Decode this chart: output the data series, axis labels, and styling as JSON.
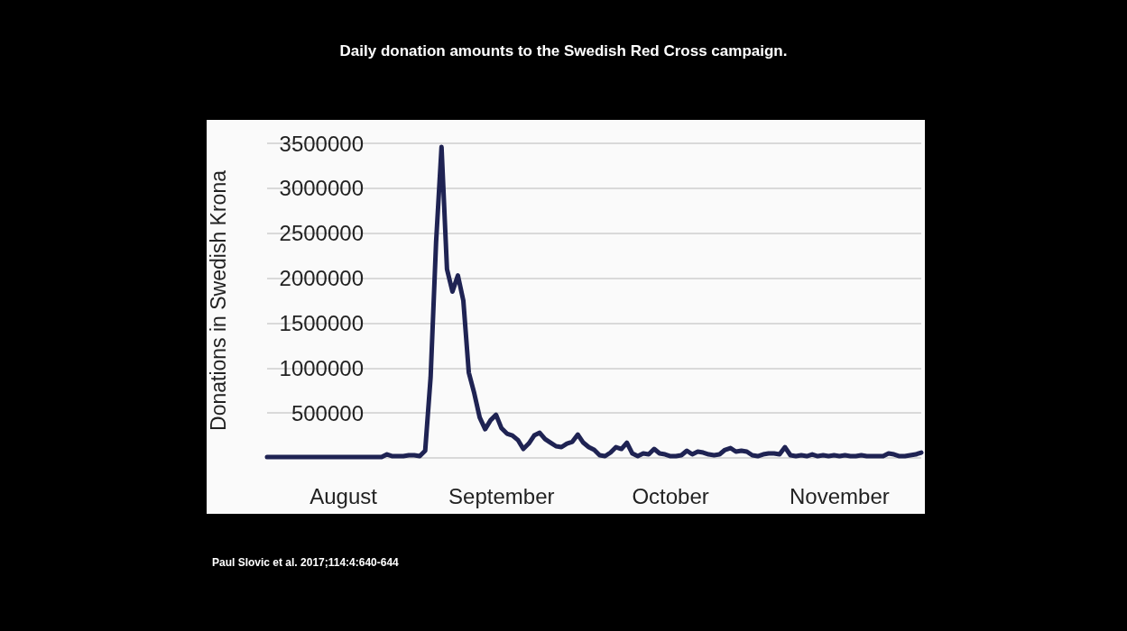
{
  "chart_data": {
    "type": "line",
    "title": "Daily donation amounts to the Swedish Red Cross campaign.",
    "ylabel": "Donations in Swedish Krona",
    "annotations": [
      "Paul Slovic et al. 2017;114:4:640-644"
    ],
    "categories": [
      null,
      null,
      null,
      null,
      null,
      null,
      null,
      null,
      null,
      null,
      null,
      null,
      null,
      null,
      "August",
      null,
      null,
      null,
      null,
      null,
      null,
      null,
      null,
      null,
      null,
      null,
      null,
      null,
      null,
      null,
      null,
      null,
      null,
      null,
      null,
      null,
      null,
      null,
      null,
      null,
      null,
      null,
      null,
      "September",
      null,
      null,
      null,
      null,
      null,
      null,
      null,
      null,
      null,
      null,
      null,
      null,
      null,
      null,
      null,
      null,
      null,
      null,
      null,
      null,
      null,
      null,
      null,
      null,
      null,
      null,
      null,
      null,
      null,
      null,
      "October",
      null,
      null,
      null,
      null,
      null,
      null,
      null,
      null,
      null,
      null,
      null,
      null,
      null,
      null,
      null,
      null,
      null,
      null,
      null,
      null,
      null,
      null,
      null,
      null,
      null,
      null,
      null,
      null,
      null,
      null,
      "November",
      null,
      null,
      null,
      null,
      null,
      null,
      null,
      null,
      null,
      null,
      null,
      null,
      null,
      null,
      null
    ],
    "series": [
      {
        "color": "#1f2353",
        "values": [
          10000,
          10000,
          10000,
          10000,
          10000,
          10000,
          10000,
          10000,
          10000,
          10000,
          10000,
          10000,
          10000,
          10000,
          10000,
          10000,
          10000,
          10000,
          10000,
          10000,
          10000,
          10000,
          40000,
          20000,
          20000,
          20000,
          30000,
          30000,
          20000,
          80000,
          900000,
          2400000,
          3460000,
          2100000,
          1850000,
          2030000,
          1750000,
          950000,
          720000,
          450000,
          320000,
          420000,
          480000,
          330000,
          270000,
          250000,
          200000,
          100000,
          160000,
          250000,
          280000,
          210000,
          170000,
          130000,
          120000,
          160000,
          180000,
          260000,
          170000,
          120000,
          90000,
          30000,
          20000,
          60000,
          120000,
          100000,
          170000,
          50000,
          20000,
          50000,
          40000,
          100000,
          50000,
          40000,
          20000,
          20000,
          30000,
          80000,
          40000,
          70000,
          60000,
          40000,
          30000,
          40000,
          90000,
          110000,
          70000,
          80000,
          70000,
          30000,
          20000,
          40000,
          50000,
          50000,
          40000,
          120000,
          30000,
          20000,
          30000,
          20000,
          40000,
          20000,
          30000,
          20000,
          30000,
          20000,
          30000,
          20000,
          20000,
          30000,
          20000,
          20000,
          20000,
          20000,
          50000,
          40000,
          20000,
          20000,
          30000,
          40000,
          60000
        ]
      }
    ],
    "ylim": [
      0,
      3500000
    ],
    "yticks": [
      {
        "value": 0,
        "label": null
      },
      500000,
      1000000,
      1500000,
      2000000,
      2500000,
      3000000,
      3500000
    ],
    "grid": "y",
    "marker": "none",
    "line_style": "solid"
  }
}
